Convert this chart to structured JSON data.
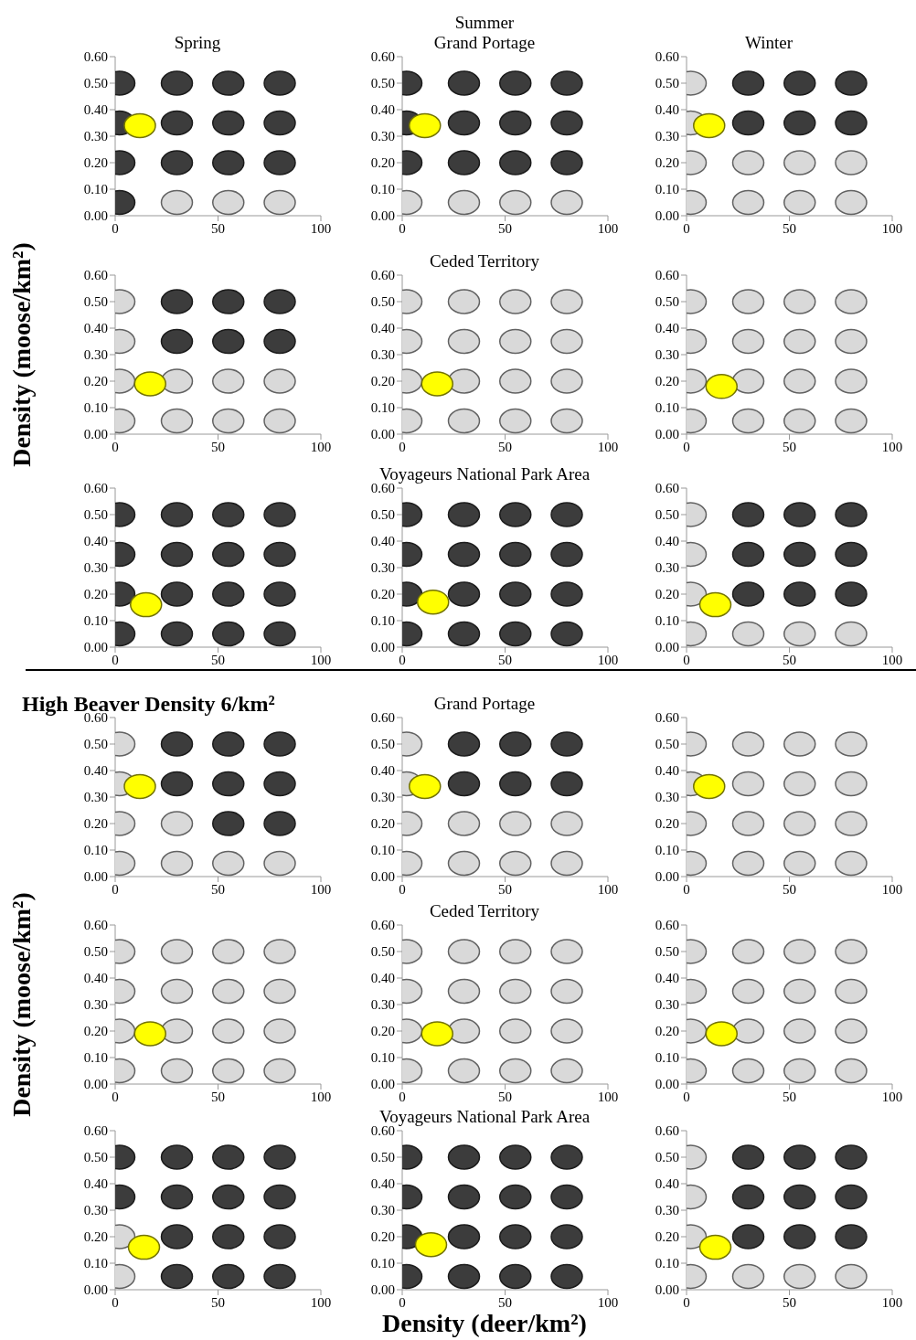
{
  "chart_data": [
    {
      "type": "scatter",
      "title": "Spring",
      "xlim": [
        0,
        100
      ],
      "xticks": [
        0,
        50,
        100
      ],
      "ylim": [
        0,
        0.6
      ],
      "yticks": [
        {
          "value": 0,
          "label": "0.00"
        },
        {
          "value": 0.1,
          "label": "0.10"
        },
        {
          "value": 0.2,
          "label": "0.20"
        },
        {
          "value": 0.3,
          "label": "0.30"
        },
        {
          "value": 0.4,
          "label": "0.40"
        },
        {
          "value": 0.5,
          "label": "0.50"
        },
        {
          "value": 0.6,
          "label": "0.60"
        }
      ],
      "marker": "circle",
      "series": [
        {
          "color": "#3c3c3c",
          "x": [
            2,
            30,
            55,
            80,
            2,
            30,
            55,
            80,
            2,
            30,
            55,
            80,
            2
          ],
          "values": [
            0.5,
            0.5,
            0.5,
            0.5,
            0.35,
            0.35,
            0.35,
            0.35,
            0.2,
            0.2,
            0.2,
            0.2,
            0.05
          ]
        },
        {
          "color": "#d9d9d9",
          "x": [
            30,
            55,
            80
          ],
          "values": [
            0.05,
            0.05,
            0.05
          ]
        },
        {
          "color": "#ffff00",
          "x": [
            12
          ],
          "values": [
            0.34
          ]
        }
      ]
    },
    {
      "type": "scatter",
      "title": "Summer",
      "subtitle": "Grand Portage",
      "xlim": [
        0,
        100
      ],
      "xticks": [
        0,
        50,
        100
      ],
      "ylim": [
        0,
        0.6
      ],
      "yticks": [
        {
          "value": 0,
          "label": "0.00"
        },
        {
          "value": 0.1,
          "label": "0.10"
        },
        {
          "value": 0.2,
          "label": "0.20"
        },
        {
          "value": 0.3,
          "label": "0.30"
        },
        {
          "value": 0.4,
          "label": "0.40"
        },
        {
          "value": 0.5,
          "label": "0.50"
        },
        {
          "value": 0.6,
          "label": "0.60"
        }
      ],
      "marker": "circle",
      "series": [
        {
          "color": "#3c3c3c",
          "x": [
            2,
            30,
            55,
            80,
            2,
            30,
            55,
            80,
            2,
            30,
            55,
            80
          ],
          "values": [
            0.5,
            0.5,
            0.5,
            0.5,
            0.35,
            0.35,
            0.35,
            0.35,
            0.2,
            0.2,
            0.2,
            0.2
          ]
        },
        {
          "color": "#d9d9d9",
          "x": [
            2,
            30,
            55,
            80
          ],
          "values": [
            0.05,
            0.05,
            0.05,
            0.05
          ]
        },
        {
          "color": "#ffff00",
          "x": [
            11
          ],
          "values": [
            0.34
          ]
        }
      ]
    },
    {
      "type": "scatter",
      "title": "Winter",
      "xlim": [
        0,
        100
      ],
      "xticks": [
        0,
        50,
        100
      ],
      "ylim": [
        0,
        0.6
      ],
      "yticks": [
        {
          "value": 0,
          "label": "0.00"
        },
        {
          "value": 0.1,
          "label": "0.10"
        },
        {
          "value": 0.2,
          "label": "0.20"
        },
        {
          "value": 0.3,
          "label": "0.30"
        },
        {
          "value": 0.4,
          "label": "0.40"
        },
        {
          "value": 0.5,
          "label": "0.50"
        },
        {
          "value": 0.6,
          "label": "0.60"
        }
      ],
      "marker": "circle",
      "series": [
        {
          "color": "#3c3c3c",
          "x": [
            30,
            55,
            80,
            30,
            55,
            80
          ],
          "values": [
            0.5,
            0.5,
            0.5,
            0.35,
            0.35,
            0.35
          ]
        },
        {
          "color": "#d9d9d9",
          "x": [
            2,
            2,
            2,
            30,
            55,
            80,
            2,
            30,
            55,
            80
          ],
          "values": [
            0.5,
            0.35,
            0.2,
            0.2,
            0.2,
            0.2,
            0.05,
            0.05,
            0.05,
            0.05
          ]
        },
        {
          "color": "#ffff00",
          "x": [
            11
          ],
          "values": [
            0.34
          ]
        }
      ]
    },
    {
      "type": "scatter",
      "ylabel": "Density (moose/km²)",
      "xlim": [
        0,
        100
      ],
      "xticks": [
        0,
        50,
        100
      ],
      "ylim": [
        0,
        0.6
      ],
      "yticks": [
        {
          "value": 0,
          "label": "0.00"
        },
        {
          "value": 0.1,
          "label": "0.10"
        },
        {
          "value": 0.2,
          "label": "0.20"
        },
        {
          "value": 0.3,
          "label": "0.30"
        },
        {
          "value": 0.4,
          "label": "0.40"
        },
        {
          "value": 0.5,
          "label": "0.50"
        },
        {
          "value": 0.6,
          "label": "0.60"
        }
      ],
      "marker": "circle",
      "series": [
        {
          "color": "#3c3c3c",
          "x": [
            30,
            55,
            80,
            30,
            55,
            80
          ],
          "values": [
            0.5,
            0.5,
            0.5,
            0.35,
            0.35,
            0.35
          ]
        },
        {
          "color": "#d9d9d9",
          "x": [
            2,
            2,
            2,
            30,
            55,
            80,
            2,
            30,
            55,
            80
          ],
          "values": [
            0.5,
            0.35,
            0.2,
            0.2,
            0.2,
            0.2,
            0.05,
            0.05,
            0.05,
            0.05
          ]
        },
        {
          "color": "#ffff00",
          "x": [
            17
          ],
          "values": [
            0.19
          ]
        }
      ]
    },
    {
      "type": "scatter",
      "title": "Ceded Territory",
      "xlim": [
        0,
        100
      ],
      "xticks": [
        0,
        50,
        100
      ],
      "ylim": [
        0,
        0.6
      ],
      "yticks": [
        {
          "value": 0,
          "label": "0.00"
        },
        {
          "value": 0.1,
          "label": "0.10"
        },
        {
          "value": 0.2,
          "label": "0.20"
        },
        {
          "value": 0.3,
          "label": "0.30"
        },
        {
          "value": 0.4,
          "label": "0.40"
        },
        {
          "value": 0.5,
          "label": "0.50"
        },
        {
          "value": 0.6,
          "label": "0.60"
        }
      ],
      "marker": "circle",
      "series": [
        {
          "color": "#d9d9d9",
          "x": [
            2,
            30,
            55,
            80,
            2,
            30,
            55,
            80,
            2,
            30,
            55,
            80,
            2,
            30,
            55,
            80
          ],
          "values": [
            0.5,
            0.5,
            0.5,
            0.5,
            0.35,
            0.35,
            0.35,
            0.35,
            0.2,
            0.2,
            0.2,
            0.2,
            0.05,
            0.05,
            0.05,
            0.05
          ]
        },
        {
          "color": "#ffff00",
          "x": [
            17
          ],
          "values": [
            0.19
          ]
        }
      ]
    },
    {
      "type": "scatter",
      "xlim": [
        0,
        100
      ],
      "xticks": [
        0,
        50,
        100
      ],
      "ylim": [
        0,
        0.6
      ],
      "yticks": [
        {
          "value": 0,
          "label": "0.00"
        },
        {
          "value": 0.1,
          "label": "0.10"
        },
        {
          "value": 0.2,
          "label": "0.20"
        },
        {
          "value": 0.3,
          "label": "0.30"
        },
        {
          "value": 0.4,
          "label": "0.40"
        },
        {
          "value": 0.5,
          "label": "0.50"
        },
        {
          "value": 0.6,
          "label": "0.60"
        }
      ],
      "marker": "circle",
      "series": [
        {
          "color": "#d9d9d9",
          "x": [
            2,
            30,
            55,
            80,
            2,
            30,
            55,
            80,
            2,
            30,
            55,
            80,
            2,
            30,
            55,
            80
          ],
          "values": [
            0.5,
            0.5,
            0.5,
            0.5,
            0.35,
            0.35,
            0.35,
            0.35,
            0.2,
            0.2,
            0.2,
            0.2,
            0.05,
            0.05,
            0.05,
            0.05
          ]
        },
        {
          "color": "#ffff00",
          "x": [
            17
          ],
          "values": [
            0.18
          ]
        }
      ]
    },
    {
      "type": "scatter",
      "xlim": [
        0,
        100
      ],
      "xticks": [
        0,
        50,
        100
      ],
      "ylim": [
        0,
        0.6
      ],
      "yticks": [
        {
          "value": 0,
          "label": "0.00"
        },
        {
          "value": 0.1,
          "label": "0.10"
        },
        {
          "value": 0.2,
          "label": "0.20"
        },
        {
          "value": 0.3,
          "label": "0.30"
        },
        {
          "value": 0.4,
          "label": "0.40"
        },
        {
          "value": 0.5,
          "label": "0.50"
        },
        {
          "value": 0.6,
          "label": "0.60"
        }
      ],
      "marker": "circle",
      "series": [
        {
          "color": "#3c3c3c",
          "x": [
            2,
            30,
            55,
            80,
            2,
            30,
            55,
            80,
            2,
            30,
            55,
            80,
            2,
            30,
            55,
            80
          ],
          "values": [
            0.5,
            0.5,
            0.5,
            0.5,
            0.35,
            0.35,
            0.35,
            0.35,
            0.2,
            0.2,
            0.2,
            0.2,
            0.05,
            0.05,
            0.05,
            0.05
          ]
        },
        {
          "color": "#ffff00",
          "x": [
            15
          ],
          "values": [
            0.16
          ]
        }
      ]
    },
    {
      "type": "scatter",
      "title": "Voyageurs National Park Area",
      "xlim": [
        0,
        100
      ],
      "xticks": [
        0,
        50,
        100
      ],
      "ylim": [
        0,
        0.6
      ],
      "yticks": [
        {
          "value": 0,
          "label": "0.00"
        },
        {
          "value": 0.1,
          "label": "0.10"
        },
        {
          "value": 0.2,
          "label": "0.20"
        },
        {
          "value": 0.3,
          "label": "0.30"
        },
        {
          "value": 0.4,
          "label": "0.40"
        },
        {
          "value": 0.5,
          "label": "0.50"
        },
        {
          "value": 0.6,
          "label": "0.60"
        }
      ],
      "marker": "circle",
      "series": [
        {
          "color": "#3c3c3c",
          "x": [
            2,
            30,
            55,
            80,
            2,
            30,
            55,
            80,
            2,
            30,
            55,
            80,
            2,
            30,
            55,
            80
          ],
          "values": [
            0.5,
            0.5,
            0.5,
            0.5,
            0.35,
            0.35,
            0.35,
            0.35,
            0.2,
            0.2,
            0.2,
            0.2,
            0.05,
            0.05,
            0.05,
            0.05
          ]
        },
        {
          "color": "#ffff00",
          "x": [
            15
          ],
          "values": [
            0.17
          ]
        }
      ]
    },
    {
      "type": "scatter",
      "xlim": [
        0,
        100
      ],
      "xticks": [
        0,
        50,
        100
      ],
      "ylim": [
        0,
        0.6
      ],
      "yticks": [
        {
          "value": 0,
          "label": "0.00"
        },
        {
          "value": 0.1,
          "label": "0.10"
        },
        {
          "value": 0.2,
          "label": "0.20"
        },
        {
          "value": 0.3,
          "label": "0.30"
        },
        {
          "value": 0.4,
          "label": "0.40"
        },
        {
          "value": 0.5,
          "label": "0.50"
        },
        {
          "value": 0.6,
          "label": "0.60"
        }
      ],
      "marker": "circle",
      "series": [
        {
          "color": "#3c3c3c",
          "x": [
            30,
            55,
            80,
            30,
            55,
            80,
            30,
            55,
            80
          ],
          "values": [
            0.5,
            0.5,
            0.5,
            0.35,
            0.35,
            0.35,
            0.2,
            0.2,
            0.2
          ]
        },
        {
          "color": "#d9d9d9",
          "x": [
            2,
            2,
            2,
            2,
            30,
            55,
            80
          ],
          "values": [
            0.5,
            0.35,
            0.2,
            0.05,
            0.05,
            0.05,
            0.05
          ]
        },
        {
          "color": "#ffff00",
          "x": [
            14
          ],
          "values": [
            0.16
          ]
        }
      ]
    },
    {
      "type": "scatter",
      "title": "High Beaver Density 6/km²",
      "xlim": [
        0,
        100
      ],
      "xticks": [
        0,
        50,
        100
      ],
      "ylim": [
        0,
        0.6
      ],
      "yticks": [
        {
          "value": 0,
          "label": "0.00"
        },
        {
          "value": 0.1,
          "label": "0.10"
        },
        {
          "value": 0.2,
          "label": "0.20"
        },
        {
          "value": 0.3,
          "label": "0.30"
        },
        {
          "value": 0.4,
          "label": "0.40"
        },
        {
          "value": 0.5,
          "label": "0.50"
        },
        {
          "value": 0.6,
          "label": "0.60"
        }
      ],
      "marker": "circle",
      "series": [
        {
          "color": "#3c3c3c",
          "x": [
            30,
            55,
            80,
            30,
            55,
            80,
            55,
            80
          ],
          "values": [
            0.5,
            0.5,
            0.5,
            0.35,
            0.35,
            0.35,
            0.2,
            0.2
          ]
        },
        {
          "color": "#d9d9d9",
          "x": [
            2,
            2,
            2,
            30,
            2,
            30,
            55,
            80
          ],
          "values": [
            0.5,
            0.35,
            0.2,
            0.2,
            0.05,
            0.05,
            0.05,
            0.05
          ]
        },
        {
          "color": "#ffff00",
          "x": [
            12
          ],
          "values": [
            0.34
          ]
        }
      ]
    },
    {
      "type": "scatter",
      "title": "Grand Portage",
      "xlim": [
        0,
        100
      ],
      "xticks": [
        0,
        50,
        100
      ],
      "ylim": [
        0,
        0.6
      ],
      "yticks": [
        {
          "value": 0,
          "label": "0.00"
        },
        {
          "value": 0.1,
          "label": "0.10"
        },
        {
          "value": 0.2,
          "label": "0.20"
        },
        {
          "value": 0.3,
          "label": "0.30"
        },
        {
          "value": 0.4,
          "label": "0.40"
        },
        {
          "value": 0.5,
          "label": "0.50"
        },
        {
          "value": 0.6,
          "label": "0.60"
        }
      ],
      "marker": "circle",
      "series": [
        {
          "color": "#3c3c3c",
          "x": [
            30,
            55,
            80,
            30,
            55,
            80
          ],
          "values": [
            0.5,
            0.5,
            0.5,
            0.35,
            0.35,
            0.35
          ]
        },
        {
          "color": "#d9d9d9",
          "x": [
            2,
            2,
            2,
            30,
            55,
            80,
            2,
            30,
            55,
            80
          ],
          "values": [
            0.5,
            0.35,
            0.2,
            0.2,
            0.2,
            0.2,
            0.05,
            0.05,
            0.05,
            0.05
          ]
        },
        {
          "color": "#ffff00",
          "x": [
            11
          ],
          "values": [
            0.34
          ]
        }
      ]
    },
    {
      "type": "scatter",
      "xlim": [
        0,
        100
      ],
      "xticks": [
        0,
        50,
        100
      ],
      "ylim": [
        0,
        0.6
      ],
      "yticks": [
        {
          "value": 0,
          "label": "0.00"
        },
        {
          "value": 0.1,
          "label": "0.10"
        },
        {
          "value": 0.2,
          "label": "0.20"
        },
        {
          "value": 0.3,
          "label": "0.30"
        },
        {
          "value": 0.4,
          "label": "0.40"
        },
        {
          "value": 0.5,
          "label": "0.50"
        },
        {
          "value": 0.6,
          "label": "0.60"
        }
      ],
      "marker": "circle",
      "series": [
        {
          "color": "#d9d9d9",
          "x": [
            2,
            30,
            55,
            80,
            2,
            30,
            55,
            80,
            2,
            30,
            55,
            80,
            2,
            30,
            55,
            80
          ],
          "values": [
            0.5,
            0.5,
            0.5,
            0.5,
            0.35,
            0.35,
            0.35,
            0.35,
            0.2,
            0.2,
            0.2,
            0.2,
            0.05,
            0.05,
            0.05,
            0.05
          ]
        },
        {
          "color": "#ffff00",
          "x": [
            11
          ],
          "values": [
            0.34
          ]
        }
      ]
    },
    {
      "type": "scatter",
      "ylabel": "Density (moose/km²)",
      "xlim": [
        0,
        100
      ],
      "xticks": [
        0,
        50,
        100
      ],
      "ylim": [
        0,
        0.6
      ],
      "yticks": [
        {
          "value": 0,
          "label": "0.00"
        },
        {
          "value": 0.1,
          "label": "0.10"
        },
        {
          "value": 0.2,
          "label": "0.20"
        },
        {
          "value": 0.3,
          "label": "0.30"
        },
        {
          "value": 0.4,
          "label": "0.40"
        },
        {
          "value": 0.5,
          "label": "0.50"
        },
        {
          "value": 0.6,
          "label": "0.60"
        }
      ],
      "marker": "circle",
      "series": [
        {
          "color": "#d9d9d9",
          "x": [
            2,
            30,
            55,
            80,
            2,
            30,
            55,
            80,
            2,
            30,
            55,
            80,
            2,
            30,
            55,
            80
          ],
          "values": [
            0.5,
            0.5,
            0.5,
            0.5,
            0.35,
            0.35,
            0.35,
            0.35,
            0.2,
            0.2,
            0.2,
            0.2,
            0.05,
            0.05,
            0.05,
            0.05
          ]
        },
        {
          "color": "#ffff00",
          "x": [
            17
          ],
          "values": [
            0.19
          ]
        }
      ]
    },
    {
      "type": "scatter",
      "title": "Ceded Territory",
      "xlim": [
        0,
        100
      ],
      "xticks": [
        0,
        50,
        100
      ],
      "ylim": [
        0,
        0.6
      ],
      "yticks": [
        {
          "value": 0,
          "label": "0.00"
        },
        {
          "value": 0.1,
          "label": "0.10"
        },
        {
          "value": 0.2,
          "label": "0.20"
        },
        {
          "value": 0.3,
          "label": "0.30"
        },
        {
          "value": 0.4,
          "label": "0.40"
        },
        {
          "value": 0.5,
          "label": "0.50"
        },
        {
          "value": 0.6,
          "label": "0.60"
        }
      ],
      "marker": "circle",
      "series": [
        {
          "color": "#d9d9d9",
          "x": [
            2,
            30,
            55,
            80,
            2,
            30,
            55,
            80,
            2,
            30,
            55,
            80,
            2,
            30,
            55,
            80
          ],
          "values": [
            0.5,
            0.5,
            0.5,
            0.5,
            0.35,
            0.35,
            0.35,
            0.35,
            0.2,
            0.2,
            0.2,
            0.2,
            0.05,
            0.05,
            0.05,
            0.05
          ]
        },
        {
          "color": "#ffff00",
          "x": [
            17
          ],
          "values": [
            0.19
          ]
        }
      ]
    },
    {
      "type": "scatter",
      "xlim": [
        0,
        100
      ],
      "xticks": [
        0,
        50,
        100
      ],
      "ylim": [
        0,
        0.6
      ],
      "yticks": [
        {
          "value": 0,
          "label": "0.00"
        },
        {
          "value": 0.1,
          "label": "0.10"
        },
        {
          "value": 0.2,
          "label": "0.20"
        },
        {
          "value": 0.3,
          "label": "0.30"
        },
        {
          "value": 0.4,
          "label": "0.40"
        },
        {
          "value": 0.5,
          "label": "0.50"
        },
        {
          "value": 0.6,
          "label": "0.60"
        }
      ],
      "marker": "circle",
      "series": [
        {
          "color": "#d9d9d9",
          "x": [
            2,
            30,
            55,
            80,
            2,
            30,
            55,
            80,
            2,
            30,
            55,
            80,
            2,
            30,
            55,
            80
          ],
          "values": [
            0.5,
            0.5,
            0.5,
            0.5,
            0.35,
            0.35,
            0.35,
            0.35,
            0.2,
            0.2,
            0.2,
            0.2,
            0.05,
            0.05,
            0.05,
            0.05
          ]
        },
        {
          "color": "#ffff00",
          "x": [
            17
          ],
          "values": [
            0.19
          ]
        }
      ]
    },
    {
      "type": "scatter",
      "xlim": [
        0,
        100
      ],
      "xticks": [
        0,
        50,
        100
      ],
      "ylim": [
        0,
        0.6
      ],
      "yticks": [
        {
          "value": 0,
          "label": "0.00"
        },
        {
          "value": 0.1,
          "label": "0.10"
        },
        {
          "value": 0.2,
          "label": "0.20"
        },
        {
          "value": 0.3,
          "label": "0.30"
        },
        {
          "value": 0.4,
          "label": "0.40"
        },
        {
          "value": 0.5,
          "label": "0.50"
        },
        {
          "value": 0.6,
          "label": "0.60"
        }
      ],
      "marker": "circle",
      "series": [
        {
          "color": "#3c3c3c",
          "x": [
            2,
            30,
            55,
            80,
            2,
            30,
            55,
            80,
            30,
            55,
            80,
            30,
            55,
            80
          ],
          "values": [
            0.5,
            0.5,
            0.5,
            0.5,
            0.35,
            0.35,
            0.35,
            0.35,
            0.2,
            0.2,
            0.2,
            0.05,
            0.05,
            0.05
          ]
        },
        {
          "color": "#d9d9d9",
          "x": [
            2,
            2
          ],
          "values": [
            0.2,
            0.05
          ]
        },
        {
          "color": "#ffff00",
          "x": [
            14
          ],
          "values": [
            0.16
          ]
        }
      ]
    },
    {
      "type": "scatter",
      "title": "Voyageurs National Park Area",
      "xlabel": "Density (deer/km²)",
      "xlim": [
        0,
        100
      ],
      "xticks": [
        0,
        50,
        100
      ],
      "ylim": [
        0,
        0.6
      ],
      "yticks": [
        {
          "value": 0,
          "label": "0.00"
        },
        {
          "value": 0.1,
          "label": "0.10"
        },
        {
          "value": 0.2,
          "label": "0.20"
        },
        {
          "value": 0.3,
          "label": "0.30"
        },
        {
          "value": 0.4,
          "label": "0.40"
        },
        {
          "value": 0.5,
          "label": "0.50"
        },
        {
          "value": 0.6,
          "label": "0.60"
        }
      ],
      "marker": "circle",
      "series": [
        {
          "color": "#3c3c3c",
          "x": [
            2,
            30,
            55,
            80,
            2,
            30,
            55,
            80,
            2,
            30,
            55,
            80,
            2,
            30,
            55,
            80
          ],
          "values": [
            0.5,
            0.5,
            0.5,
            0.5,
            0.35,
            0.35,
            0.35,
            0.35,
            0.2,
            0.2,
            0.2,
            0.2,
            0.05,
            0.05,
            0.05,
            0.05
          ]
        },
        {
          "color": "#ffff00",
          "x": [
            14
          ],
          "values": [
            0.17
          ]
        }
      ]
    },
    {
      "type": "scatter",
      "xlim": [
        0,
        100
      ],
      "xticks": [
        0,
        50,
        100
      ],
      "ylim": [
        0,
        0.6
      ],
      "yticks": [
        {
          "value": 0,
          "label": "0.00"
        },
        {
          "value": 0.1,
          "label": "0.10"
        },
        {
          "value": 0.2,
          "label": "0.20"
        },
        {
          "value": 0.3,
          "label": "0.30"
        },
        {
          "value": 0.4,
          "label": "0.40"
        },
        {
          "value": 0.5,
          "label": "0.50"
        },
        {
          "value": 0.6,
          "label": "0.60"
        }
      ],
      "marker": "circle",
      "series": [
        {
          "color": "#3c3c3c",
          "x": [
            30,
            55,
            80,
            30,
            55,
            80,
            30,
            55,
            80
          ],
          "values": [
            0.5,
            0.5,
            0.5,
            0.35,
            0.35,
            0.35,
            0.2,
            0.2,
            0.2
          ]
        },
        {
          "color": "#d9d9d9",
          "x": [
            2,
            2,
            2,
            2,
            30,
            55,
            80
          ],
          "values": [
            0.5,
            0.35,
            0.2,
            0.05,
            0.05,
            0.05,
            0.05
          ]
        },
        {
          "color": "#ffff00",
          "x": [
            14
          ],
          "values": [
            0.16
          ]
        }
      ]
    }
  ]
}
